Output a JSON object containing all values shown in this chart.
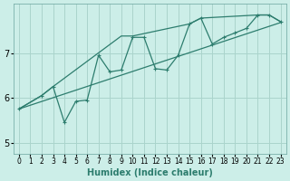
{
  "title": "",
  "xlabel": "Humidex (Indice chaleur)",
  "bg_color": "#cceee8",
  "grid_color": "#aad4cc",
  "line_color": "#2d7d6e",
  "xlim": [
    -0.5,
    23.5
  ],
  "ylim": [
    4.75,
    8.1
  ],
  "yticks": [
    5,
    6,
    7
  ],
  "xticks": [
    0,
    1,
    2,
    3,
    4,
    5,
    6,
    7,
    8,
    9,
    10,
    11,
    12,
    13,
    14,
    15,
    16,
    17,
    18,
    19,
    20,
    21,
    22,
    23
  ],
  "wiggly_x": [
    0,
    2,
    3,
    4,
    5,
    6,
    7,
    8,
    9,
    10,
    11,
    12,
    13,
    14,
    15,
    16,
    17,
    18,
    19,
    20,
    21,
    22,
    23
  ],
  "wiggly_y": [
    5.75,
    6.05,
    6.25,
    5.45,
    5.92,
    5.95,
    6.95,
    6.58,
    6.62,
    7.35,
    7.35,
    6.65,
    6.62,
    6.95,
    7.65,
    7.78,
    7.2,
    7.35,
    7.45,
    7.55,
    7.85,
    7.85,
    7.7
  ],
  "trend_x": [
    0,
    23
  ],
  "trend_y": [
    5.75,
    7.68
  ],
  "upper_x": [
    0,
    2,
    3,
    9,
    10,
    15,
    16,
    21,
    22,
    23
  ],
  "upper_y": [
    5.75,
    6.05,
    6.25,
    7.38,
    7.38,
    7.65,
    7.78,
    7.85,
    7.85,
    7.7
  ],
  "line_width": 0.9,
  "marker_size": 3,
  "font_size_label": 7,
  "font_size_tick": 6
}
